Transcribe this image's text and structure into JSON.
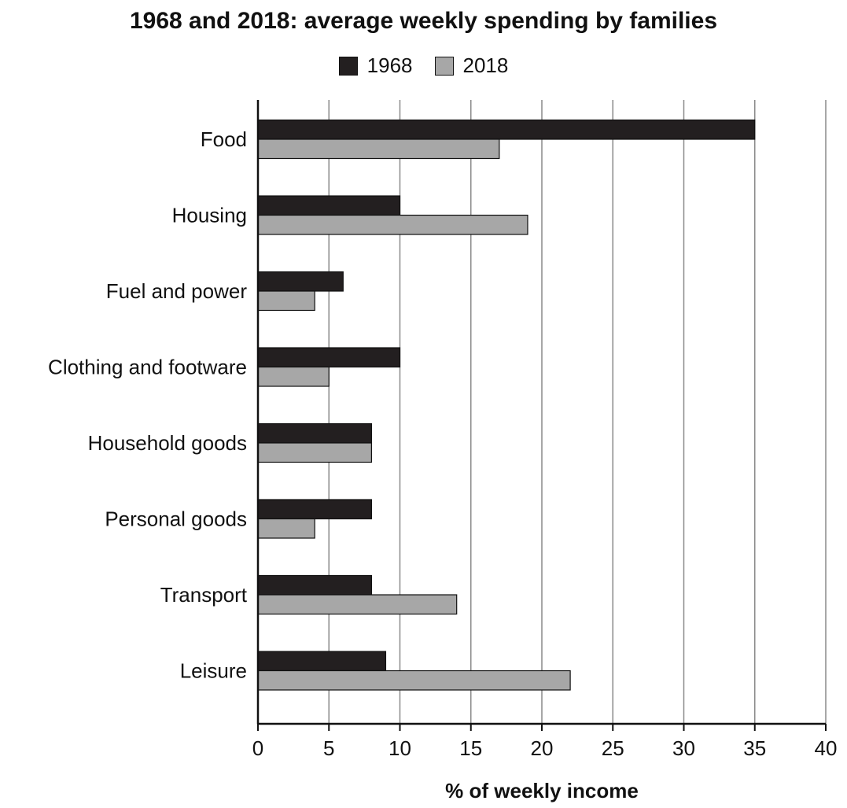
{
  "chart_data": {
    "type": "bar",
    "orientation": "horizontal",
    "title": "1968 and 2018: average weekly spending by families",
    "xlabel": "% of weekly income",
    "ylabel": "",
    "xlim": [
      0,
      40
    ],
    "xticks": [
      0,
      5,
      10,
      15,
      20,
      25,
      30,
      35,
      40
    ],
    "grid": "vertical",
    "legend_position": "top-center",
    "categories": [
      "Food",
      "Housing",
      "Fuel and power",
      "Clothing and footware",
      "Household goods",
      "Personal goods",
      "Transport",
      "Leisure"
    ],
    "series": [
      {
        "name": "1968",
        "color": "#231f20",
        "values": [
          35,
          10,
          6,
          10,
          8,
          8,
          8,
          9
        ]
      },
      {
        "name": "2018",
        "color": "#a7a7a7",
        "values": [
          17,
          19,
          4,
          5,
          8,
          4,
          14,
          22
        ]
      }
    ]
  }
}
